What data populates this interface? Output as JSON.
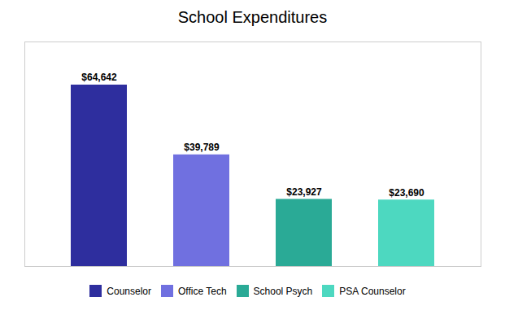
{
  "chart_data": {
    "type": "bar",
    "title": "School Expenditures",
    "categories": [
      "Counselor",
      "Office Tech",
      "School Psych",
      "PSA Counselor"
    ],
    "values": [
      64642,
      39789,
      23927,
      23690
    ],
    "value_labels": [
      "$64,642",
      "$39,789",
      "$23,927",
      "$23,690"
    ],
    "colors": [
      "#2e2e9e",
      "#7070e0",
      "#2aaa96",
      "#4dd8c0"
    ],
    "ylim": [
      0,
      80000
    ],
    "data_labels": true,
    "tick_labels": false,
    "legend": "bottom"
  }
}
